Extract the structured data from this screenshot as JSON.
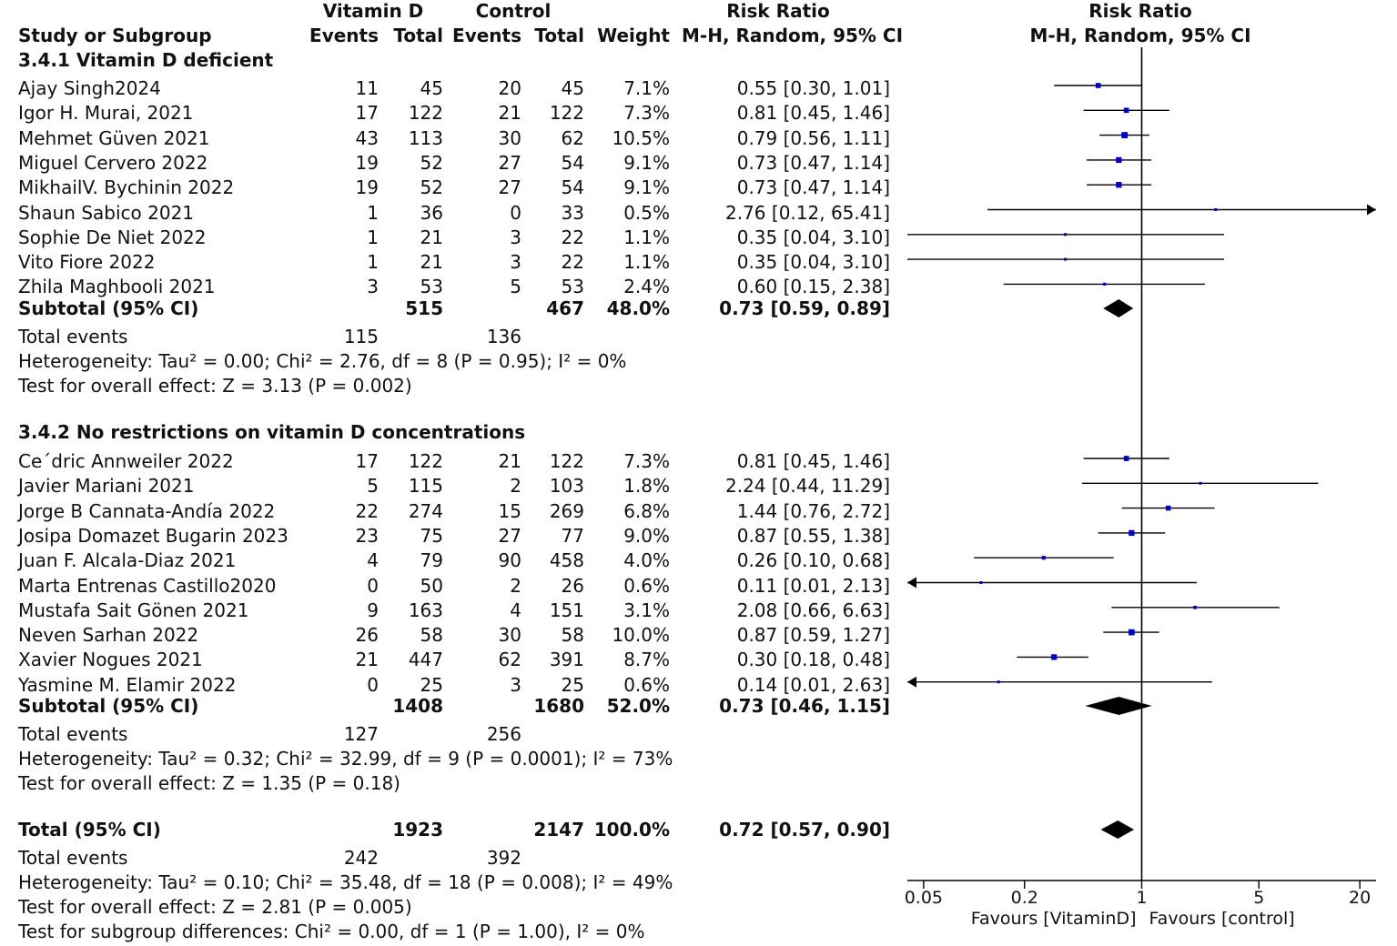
{
  "headers": {
    "vitd": "Vitamin D",
    "control": "Control",
    "rr_top": "Risk Ratio",
    "study": "Study or Subgroup",
    "events1": "Events",
    "total1": "Total",
    "events2": "Events",
    "total2": "Total",
    "weight": "Weight",
    "rr_sub": "M-H, Random, 95% CI",
    "plot_top": "Risk Ratio",
    "plot_sub": "M-H, Random, 95% CI"
  },
  "group1": {
    "title": "3.4.1 Vitamin D deficient",
    "rows": [
      {
        "study": "Ajay Singh2024",
        "e1": "11",
        "t1": "45",
        "e2": "20",
        "t2": "45",
        "w": "7.1%",
        "ci": "0.55 [0.30, 1.01]"
      },
      {
        "study": "Igor H. Murai, 2021",
        "e1": "17",
        "t1": "122",
        "e2": "21",
        "t2": "122",
        "w": "7.3%",
        "ci": "0.81 [0.45, 1.46]"
      },
      {
        "study": "Mehmet Güven 2021",
        "e1": "43",
        "t1": "113",
        "e2": "30",
        "t2": "62",
        "w": "10.5%",
        "ci": "0.79 [0.56, 1.11]"
      },
      {
        "study": "Miguel Cervero 2022",
        "e1": "19",
        "t1": "52",
        "e2": "27",
        "t2": "54",
        "w": "9.1%",
        "ci": "0.73 [0.47, 1.14]"
      },
      {
        "study": "MikhailV. Bychinin 2022",
        "e1": "19",
        "t1": "52",
        "e2": "27",
        "t2": "54",
        "w": "9.1%",
        "ci": "0.73 [0.47, 1.14]"
      },
      {
        "study": "Shaun Sabico  2021",
        "e1": "1",
        "t1": "36",
        "e2": "0",
        "t2": "33",
        "w": "0.5%",
        "ci": "2.76 [0.12, 65.41]"
      },
      {
        "study": "Sophie De Niet 2022",
        "e1": "1",
        "t1": "21",
        "e2": "3",
        "t2": "22",
        "w": "1.1%",
        "ci": "0.35 [0.04, 3.10]"
      },
      {
        "study": "Vito Fiore 2022",
        "e1": "1",
        "t1": "21",
        "e2": "3",
        "t2": "22",
        "w": "1.1%",
        "ci": "0.35 [0.04, 3.10]"
      },
      {
        "study": "Zhila Maghbooli 2021",
        "e1": "3",
        "t1": "53",
        "e2": "5",
        "t2": "53",
        "w": "2.4%",
        "ci": "0.60 [0.15, 2.38]"
      }
    ],
    "subtotal": {
      "label": "Subtotal (95% CI)",
      "t1": "515",
      "t2": "467",
      "w": "48.0%",
      "ci": "0.73 [0.59, 0.89]"
    },
    "total_events": {
      "label": "Total events",
      "e1": "115",
      "e2": "136"
    },
    "heterogeneity": "Heterogeneity: Tau² = 0.00; Chi² = 2.76, df = 8 (P = 0.95); I² = 0%",
    "overall": "Test for overall effect: Z = 3.13 (P = 0.002)"
  },
  "group2": {
    "title": "3.4.2 No restrictions on vitamin D concentrations",
    "rows": [
      {
        "study": "Ce´dric Annweiler 2022",
        "e1": "17",
        "t1": "122",
        "e2": "21",
        "t2": "122",
        "w": "7.3%",
        "ci": "0.81 [0.45, 1.46]"
      },
      {
        "study": "Javier Mariani 2021",
        "e1": "5",
        "t1": "115",
        "e2": "2",
        "t2": "103",
        "w": "1.8%",
        "ci": "2.24 [0.44, 11.29]"
      },
      {
        "study": "Jorge B Cannata-Andía 2022",
        "e1": "22",
        "t1": "274",
        "e2": "15",
        "t2": "269",
        "w": "6.8%",
        "ci": "1.44 [0.76, 2.72]"
      },
      {
        "study": "Josipa Domazet Bugarin 2023",
        "e1": "23",
        "t1": "75",
        "e2": "27",
        "t2": "77",
        "w": "9.0%",
        "ci": "0.87 [0.55, 1.38]"
      },
      {
        "study": "Juan F. Alcala-Diaz 2021",
        "e1": "4",
        "t1": "79",
        "e2": "90",
        "t2": "458",
        "w": "4.0%",
        "ci": "0.26 [0.10, 0.68]"
      },
      {
        "study": "Marta Entrenas Castillo2020",
        "e1": "0",
        "t1": "50",
        "e2": "2",
        "t2": "26",
        "w": "0.6%",
        "ci": "0.11 [0.01, 2.13]"
      },
      {
        "study": "Mustafa Sait Gönen 2021",
        "e1": "9",
        "t1": "163",
        "e2": "4",
        "t2": "151",
        "w": "3.1%",
        "ci": "2.08 [0.66, 6.63]"
      },
      {
        "study": "Neven Sarhan 2022",
        "e1": "26",
        "t1": "58",
        "e2": "30",
        "t2": "58",
        "w": "10.0%",
        "ci": "0.87 [0.59, 1.27]"
      },
      {
        "study": "Xavier Nogues 2021",
        "e1": "21",
        "t1": "447",
        "e2": "62",
        "t2": "391",
        "w": "8.7%",
        "ci": "0.30 [0.18, 0.48]"
      },
      {
        "study": "Yasmine M. Elamir 2022",
        "e1": "0",
        "t1": "25",
        "e2": "3",
        "t2": "25",
        "w": "0.6%",
        "ci": "0.14 [0.01, 2.63]"
      }
    ],
    "subtotal": {
      "label": "Subtotal (95% CI)",
      "t1": "1408",
      "t2": "1680",
      "w": "52.0%",
      "ci": "0.73 [0.46, 1.15]"
    },
    "total_events": {
      "label": "Total events",
      "e1": "127",
      "e2": "256"
    },
    "heterogeneity": "Heterogeneity: Tau² = 0.32; Chi² = 32.99, df = 9 (P = 0.0001); I² = 73%",
    "overall": "Test for overall effect: Z = 1.35 (P = 0.18)"
  },
  "total": {
    "label": "Total (95% CI)",
    "t1": "1923",
    "t2": "2147",
    "w": "100.0%",
    "ci": "0.72 [0.57, 0.90]"
  },
  "total_events": {
    "label": "Total events",
    "e1": "242",
    "e2": "392"
  },
  "heterogeneity": "Heterogeneity: Tau² = 0.10; Chi² = 35.48, df = 18 (P = 0.008); I² = 49%",
  "overall": "Test for overall effect: Z = 2.81 (P = 0.005)",
  "subgroup_diff": "Test for subgroup differences: Chi² = 0.00, df = 1 (P = 1.00), I² = 0%",
  "colors": {
    "square": "#0000cc",
    "line": "#000000",
    "diamond": "#000000"
  },
  "chart_data": {
    "type": "forest",
    "title": "Risk Ratio",
    "subtitle": "M-H, Random, 95% CI",
    "scale": "log",
    "xlim": [
      0.04,
      25
    ],
    "ticks": [
      0.05,
      0.2,
      1,
      5,
      20
    ],
    "tick_labels": [
      "0.05",
      "0.2",
      "1",
      "5",
      "20"
    ],
    "xlabel_left": "Favours [VitaminD]",
    "xlabel_right": "Favours [control]",
    "studies": [
      {
        "name": "Ajay Singh2024",
        "rr": 0.55,
        "lo": 0.3,
        "hi": 1.01,
        "weight": 7.1
      },
      {
        "name": "Igor H. Murai, 2021",
        "rr": 0.81,
        "lo": 0.45,
        "hi": 1.46,
        "weight": 7.3
      },
      {
        "name": "Mehmet Güven 2021",
        "rr": 0.79,
        "lo": 0.56,
        "hi": 1.11,
        "weight": 10.5
      },
      {
        "name": "Miguel Cervero 2022",
        "rr": 0.73,
        "lo": 0.47,
        "hi": 1.14,
        "weight": 9.1
      },
      {
        "name": "MikhailV. Bychinin 2022",
        "rr": 0.73,
        "lo": 0.47,
        "hi": 1.14,
        "weight": 9.1
      },
      {
        "name": "Shaun Sabico  2021",
        "rr": 2.76,
        "lo": 0.12,
        "hi": 65.41,
        "weight": 0.5
      },
      {
        "name": "Sophie De Niet 2022",
        "rr": 0.35,
        "lo": 0.04,
        "hi": 3.1,
        "weight": 1.1
      },
      {
        "name": "Vito Fiore 2022",
        "rr": 0.35,
        "lo": 0.04,
        "hi": 3.1,
        "weight": 1.1
      },
      {
        "name": "Zhila Maghbooli 2021",
        "rr": 0.6,
        "lo": 0.15,
        "hi": 2.38,
        "weight": 2.4
      },
      {
        "name": "Ce´dric Annweiler 2022",
        "rr": 0.81,
        "lo": 0.45,
        "hi": 1.46,
        "weight": 7.3
      },
      {
        "name": "Javier Mariani 2021",
        "rr": 2.24,
        "lo": 0.44,
        "hi": 11.29,
        "weight": 1.8
      },
      {
        "name": "Jorge B Cannata-Andía 2022",
        "rr": 1.44,
        "lo": 0.76,
        "hi": 2.72,
        "weight": 6.8
      },
      {
        "name": "Josipa Domazet Bugarin 2023",
        "rr": 0.87,
        "lo": 0.55,
        "hi": 1.38,
        "weight": 9.0
      },
      {
        "name": "Juan F. Alcala-Diaz 2021",
        "rr": 0.26,
        "lo": 0.1,
        "hi": 0.68,
        "weight": 4.0
      },
      {
        "name": "Marta Entrenas Castillo2020",
        "rr": 0.11,
        "lo": 0.01,
        "hi": 2.13,
        "weight": 0.6
      },
      {
        "name": "Mustafa Sait Gönen 2021",
        "rr": 2.08,
        "lo": 0.66,
        "hi": 6.63,
        "weight": 3.1
      },
      {
        "name": "Neven Sarhan 2022",
        "rr": 0.87,
        "lo": 0.59,
        "hi": 1.27,
        "weight": 10.0
      },
      {
        "name": "Xavier Nogues 2021",
        "rr": 0.3,
        "lo": 0.18,
        "hi": 0.48,
        "weight": 8.7
      },
      {
        "name": "Yasmine M. Elamir 2022",
        "rr": 0.14,
        "lo": 0.01,
        "hi": 2.63,
        "weight": 0.6
      }
    ],
    "summaries": [
      {
        "name": "Subtotal 3.4.1",
        "rr": 0.73,
        "lo": 0.59,
        "hi": 0.89
      },
      {
        "name": "Subtotal 3.4.2",
        "rr": 0.73,
        "lo": 0.46,
        "hi": 1.15
      },
      {
        "name": "Total",
        "rr": 0.72,
        "lo": 0.57,
        "hi": 0.9
      }
    ]
  }
}
